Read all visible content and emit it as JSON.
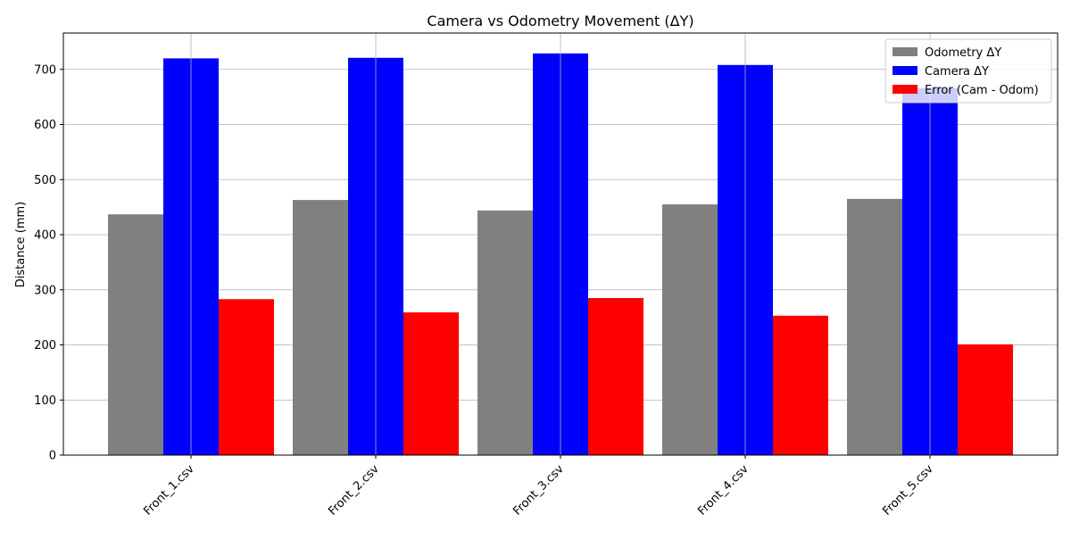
{
  "chart_data": {
    "type": "bar",
    "title": "Camera vs Odometry Movement (ΔY)",
    "xlabel": "",
    "ylabel": "Distance (mm)",
    "categories": [
      "Front_1.csv",
      "Front_2.csv",
      "Front_3.csv",
      "Front_4.csv",
      "Front_5.csv"
    ],
    "series": [
      {
        "name": "Odometry ΔY",
        "color": "#808080",
        "values": [
          437,
          463,
          444,
          455,
          465
        ]
      },
      {
        "name": "Camera ΔY",
        "color": "#0000ff",
        "values": [
          720,
          721,
          729,
          708,
          666
        ]
      },
      {
        "name": "Error (Cam - Odom)",
        "color": "#ff0000",
        "values": [
          283,
          259,
          285,
          253,
          201
        ]
      }
    ],
    "ylim": [
      0,
      766
    ],
    "yticks": [
      0,
      100,
      200,
      300,
      400,
      500,
      600,
      700
    ],
    "grid": true,
    "legend_position": "top-right",
    "xtick_rotation": 45
  }
}
